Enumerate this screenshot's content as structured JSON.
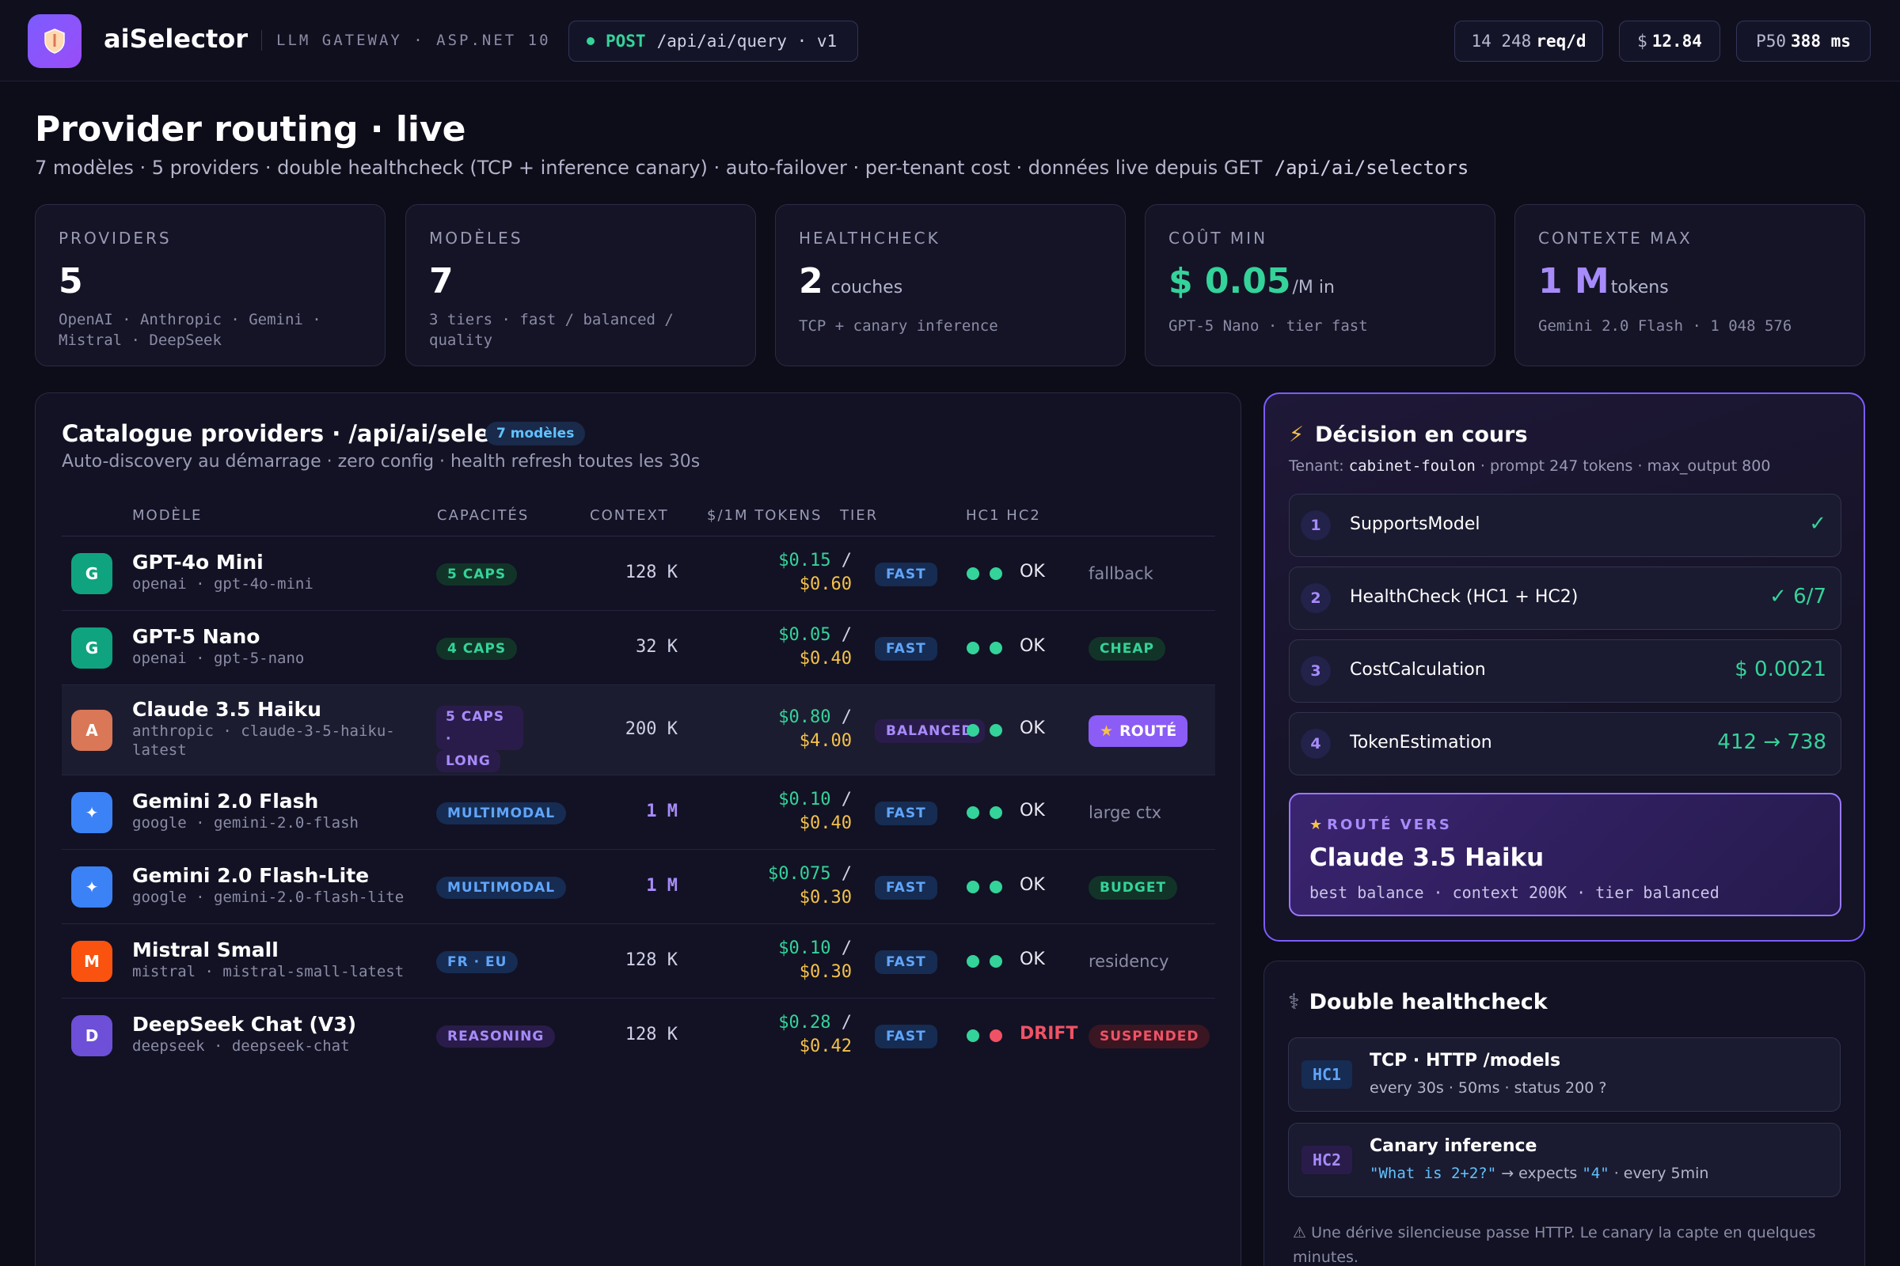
{
  "app": {
    "name": "aiSelector",
    "tag": "LLM GATEWAY · ASP.NET 10",
    "endpoint_method": "POST",
    "endpoint_path": "/api/ai/query · v1",
    "stats": [
      {
        "value": "14 248",
        "label": "req/d"
      },
      {
        "label": "$",
        "value": "12.84"
      },
      {
        "label": "P50",
        "value": "388 ms"
      }
    ]
  },
  "header": {
    "title": "Provider routing · live",
    "subtitle": "7 modèles · 5 providers · double healthcheck (TCP + inference canary) · auto-failover · per-tenant cost · données live depuis GET",
    "subtitle_path": "/api/ai/selectors"
  },
  "kpis": [
    {
      "label": "PROVIDERS",
      "value": "5",
      "unit": "",
      "sub": "OpenAI · Anthropic · Gemini · Mistral · DeepSeek"
    },
    {
      "label": "MODÈLES",
      "value": "7",
      "unit": "",
      "sub": "3 tiers · fast / balanced / quality"
    },
    {
      "label": "HEALTHCHECK",
      "value": "2",
      "unit": "couches",
      "sub": "TCP + canary inference"
    },
    {
      "label": "COÛT MIN",
      "value": "$ 0.05",
      "unit": "/M in",
      "sub": "GPT-5 Nano · tier fast"
    },
    {
      "label": "CONTEXTE MAX",
      "value": "1 M",
      "unit": "tokens",
      "sub": "Gemini 2.0 Flash · 1 048 576"
    }
  ],
  "catalogue": {
    "title": "Catalogue providers · /api/ai/selectors",
    "count_badge": "7 modèles",
    "subtitle": "Auto-discovery au démarrage · zero config · health refresh toutes les 30s",
    "headers": {
      "model": "MODÈLE",
      "caps": "CAPACITÉS",
      "context": "CONTEXT",
      "price": "$/1M TOKENS",
      "tier": "TIER",
      "hc": "HC1 HC2"
    },
    "rows": [
      {
        "avatar": "G",
        "avatar_color": "#10a37f",
        "name": "GPT-4o Mini",
        "id": "openai · gpt-4o-mini",
        "caps": "5 CAPS",
        "caps_style": "green",
        "context": "128 K",
        "price_in": "$0.15",
        "price_out": "$0.60",
        "tier": "FAST",
        "hc1": "#34d399",
        "hc2": "#34d399",
        "status": "OK",
        "note": "fallback"
      },
      {
        "avatar": "G",
        "avatar_color": "#10a37f",
        "name": "GPT-5 Nano",
        "id": "openai · gpt-5-nano",
        "caps": "4 CAPS",
        "caps_style": "green",
        "context": "32 K",
        "price_in": "$0.05",
        "price_out": "$0.40",
        "tier": "FAST",
        "hc1": "#34d399",
        "hc2": "#34d399",
        "status": "OK",
        "pill": "CHEAP"
      },
      {
        "avatar": "A",
        "avatar_color": "#d97757",
        "name": "Claude 3.5 Haiku",
        "id": "anthropic · claude-3-5-haiku-latest",
        "caps": "5 CAPS ·",
        "caps2": "LONG",
        "context": "200 K",
        "price_in": "$0.80",
        "price_out": "$4.00",
        "tier": "BALANCED",
        "hc1": "#34d399",
        "hc2": "#34d399",
        "status": "OK",
        "routed": "ROUTÉ"
      },
      {
        "avatar": "✦",
        "avatar_color": "#3b82f6",
        "name": "Gemini 2.0 Flash",
        "id": "google · gemini-2.0-flash",
        "caps": "MULTIMODAL",
        "caps_style": "blue",
        "context": "1 M",
        "price_in": "$0.10",
        "price_out": "$0.40",
        "tier": "FAST",
        "hc1": "#34d399",
        "hc2": "#34d399",
        "status": "OK",
        "note": "large ctx"
      },
      {
        "avatar": "✦",
        "avatar_color": "#3b82f6",
        "name": "Gemini 2.0 Flash-Lite",
        "id": "google · gemini-2.0-flash-lite",
        "caps": "MULTIMODAL",
        "caps_style": "blue",
        "context": "1 M",
        "price_in": "$0.075",
        "price_out": "$0.30",
        "tier": "FAST",
        "hc1": "#34d399",
        "hc2": "#34d399",
        "status": "OK",
        "pill": "BUDGET"
      },
      {
        "avatar": "M",
        "avatar_color": "#fa520f",
        "name": "Mistral Small",
        "id": "mistral · mistral-small-latest",
        "caps": "FR · EU",
        "caps_style": "blue",
        "context": "128 K",
        "price_in": "$0.10",
        "price_out": "$0.30",
        "tier": "FAST",
        "hc1": "#34d399",
        "hc2": "#34d399",
        "status": "OK",
        "note": "residency"
      },
      {
        "avatar": "D",
        "avatar_color": "#6d4fd8",
        "name": "DeepSeek Chat (V3)",
        "id": "deepseek · deepseek-chat",
        "caps": "REASONING",
        "caps_style": "violet",
        "context": "128 K",
        "price_in": "$0.28",
        "price_out": "$0.42",
        "tier": "FAST",
        "hc1": "#34d399",
        "hc2": "#f05265",
        "status": "DRIFT",
        "pill": "SUSPENDED"
      }
    ]
  },
  "decision": {
    "title": "Décision en cours",
    "tenant_label": "Tenant:",
    "tenant": "cabinet-foulon",
    "tenant_meta": "· prompt 247 tokens · max_output 800",
    "steps": [
      {
        "num": "1",
        "name": "SupportsModel",
        "value": "✓"
      },
      {
        "num": "2",
        "name": "HealthCheck (HC1 + HC2)",
        "value": "✓ 6/7"
      },
      {
        "num": "3",
        "name": "CostCalculation",
        "value": "$ 0.0021"
      },
      {
        "num": "4",
        "name": "TokenEstimation",
        "value": "412 → 738"
      }
    ],
    "route_label": "ROUTÉ VERS",
    "route_model": "Claude 3.5 Haiku",
    "route_meta": "best balance · context 200K · tier balanced"
  },
  "healthcheck": {
    "title": "Double healthcheck",
    "items": [
      {
        "tag": "HC1",
        "title": "TCP · HTTP /models",
        "desc": "every 30s · 50ms · status 200 ?"
      },
      {
        "tag": "HC2",
        "title": "Canary inference",
        "code1": "\"What is 2+2?\"",
        "mid": " → expects ",
        "code2": "\"4\"",
        "tail": " · every 5min"
      }
    ],
    "warning": "⚠ Une dérive silencieuse passe HTTP. Le canary la capte en quelques minutes."
  }
}
